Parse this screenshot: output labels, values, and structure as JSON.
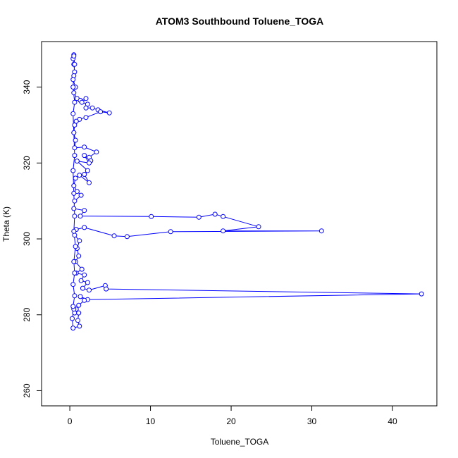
{
  "chart_data": {
    "type": "line",
    "title": "ATOM3 Southbound Toluene_TOGA",
    "xlabel": "Toluene_TOGA",
    "ylabel": "Theta (K)",
    "xlim": [
      -3.5,
      45.5
    ],
    "ylim": [
      256,
      352
    ],
    "xticks": [
      0,
      10,
      20,
      30,
      40
    ],
    "yticks": [
      260,
      280,
      300,
      320,
      340
    ],
    "grid": false,
    "legend": "none",
    "series": [
      {
        "color": "#0000ff",
        "marker": "open-circle",
        "points": [
          [
            0.5,
            348.5
          ],
          [
            0.4,
            347.5
          ],
          [
            0.5,
            346.0
          ],
          [
            0.6,
            344.0
          ],
          [
            0.4,
            342.0
          ],
          [
            0.7,
            340.0
          ],
          [
            0.5,
            338.5
          ],
          [
            0.9,
            337.0
          ],
          [
            1.3,
            336.5
          ],
          [
            2.0,
            337.0
          ],
          [
            1.5,
            336.0
          ],
          [
            2.2,
            335.5
          ],
          [
            2.0,
            334.5
          ],
          [
            2.8,
            334.5
          ],
          [
            3.5,
            334.0
          ],
          [
            4.9,
            333.2
          ],
          [
            3.8,
            333.5
          ],
          [
            2.0,
            332.0
          ],
          [
            1.2,
            331.5
          ],
          [
            0.8,
            331.0
          ],
          [
            0.6,
            330.0
          ],
          [
            0.5,
            328.0
          ],
          [
            0.7,
            326.0
          ],
          [
            0.6,
            324.0
          ],
          [
            1.8,
            324.2
          ],
          [
            3.3,
            322.9
          ],
          [
            2.4,
            321.5
          ],
          [
            2.6,
            320.6
          ],
          [
            1.8,
            322.0
          ],
          [
            2.4,
            320.0
          ],
          [
            0.9,
            320.5
          ],
          [
            2.2,
            318.0
          ],
          [
            1.8,
            317.0
          ],
          [
            2.4,
            314.8
          ],
          [
            1.2,
            316.8
          ],
          [
            0.7,
            316.0
          ],
          [
            0.5,
            314.0
          ],
          [
            0.9,
            312.5
          ],
          [
            1.4,
            311.5
          ],
          [
            0.6,
            310.0
          ],
          [
            0.5,
            308.0
          ],
          [
            1.8,
            307.5
          ],
          [
            1.3,
            306.0
          ],
          [
            10.1,
            305.9
          ],
          [
            16.0,
            305.7
          ],
          [
            18.0,
            306.5
          ],
          [
            19.0,
            305.9
          ],
          [
            23.4,
            303.2
          ],
          [
            19.0,
            302.1
          ],
          [
            31.2,
            302.1
          ],
          [
            12.5,
            301.9
          ],
          [
            7.1,
            300.6
          ],
          [
            5.5,
            300.8
          ],
          [
            1.8,
            303.0
          ],
          [
            0.8,
            302.5
          ],
          [
            0.6,
            301.0
          ],
          [
            1.2,
            299.5
          ],
          [
            0.9,
            297.5
          ],
          [
            1.1,
            295.5
          ],
          [
            0.7,
            294.0
          ],
          [
            1.5,
            292.0
          ],
          [
            0.8,
            291.0
          ],
          [
            1.8,
            290.5
          ],
          [
            1.4,
            289.0
          ],
          [
            2.2,
            288.5
          ],
          [
            1.6,
            287.0
          ],
          [
            2.4,
            286.5
          ],
          [
            4.4,
            287.7
          ],
          [
            4.5,
            286.8
          ],
          [
            43.6,
            285.5
          ],
          [
            2.2,
            284.0
          ],
          [
            1.3,
            284.8
          ],
          [
            1.8,
            283.8
          ],
          [
            1.1,
            282.5
          ],
          [
            0.8,
            281.5
          ],
          [
            0.6,
            280.5
          ],
          [
            1.1,
            280.5
          ],
          [
            1.0,
            278.5
          ],
          [
            1.2,
            277.0
          ],
          [
            0.4,
            276.5
          ],
          [
            0.3,
            279.0
          ],
          [
            0.5,
            281.5
          ],
          [
            0.4,
            282.2
          ],
          [
            0.6,
            285.0
          ],
          [
            0.4,
            288.0
          ],
          [
            0.6,
            291.0
          ],
          [
            0.5,
            294.0
          ],
          [
            0.7,
            298.0
          ],
          [
            0.5,
            302.0
          ],
          [
            0.6,
            306.0
          ],
          [
            0.5,
            312.0
          ],
          [
            0.4,
            318.0
          ],
          [
            0.6,
            322.0
          ],
          [
            0.5,
            328.0
          ],
          [
            0.4,
            333.0
          ],
          [
            0.6,
            336.0
          ],
          [
            0.4,
            340.0
          ],
          [
            0.5,
            343.0
          ],
          [
            0.6,
            346.0
          ],
          [
            0.5,
            348.2
          ]
        ]
      }
    ]
  }
}
